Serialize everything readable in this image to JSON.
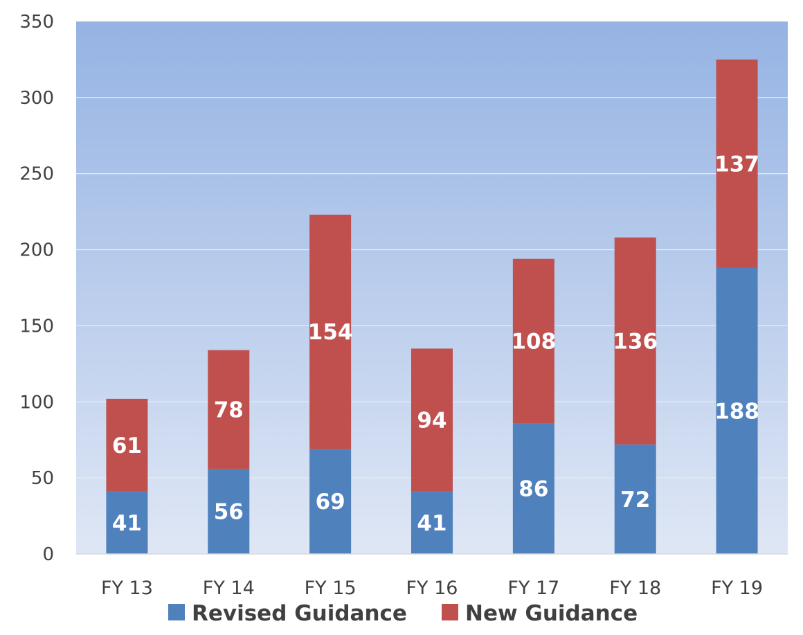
{
  "chart_data": {
    "type": "bar",
    "stacked": true,
    "title": "",
    "xlabel": "",
    "ylabel": "",
    "categories": [
      "FY 13",
      "FY 14",
      "FY 15",
      "FY 16",
      "FY 17",
      "FY 18",
      "FY 19"
    ],
    "series": [
      {
        "name": "Revised Guidance",
        "color": "#4f81bd",
        "values": [
          41,
          56,
          69,
          41,
          86,
          72,
          188
        ]
      },
      {
        "name": "New Guidance",
        "color": "#c0504d",
        "values": [
          61,
          78,
          154,
          94,
          108,
          136,
          137
        ]
      }
    ],
    "ylim": [
      0,
      350
    ],
    "yticks": [
      "0",
      "50",
      "100",
      "150",
      "200",
      "250",
      "300",
      "350"
    ],
    "grid": true,
    "legend_position": "bottom",
    "plot_background": [
      "#dfe7f5",
      "#95b3e3"
    ]
  }
}
